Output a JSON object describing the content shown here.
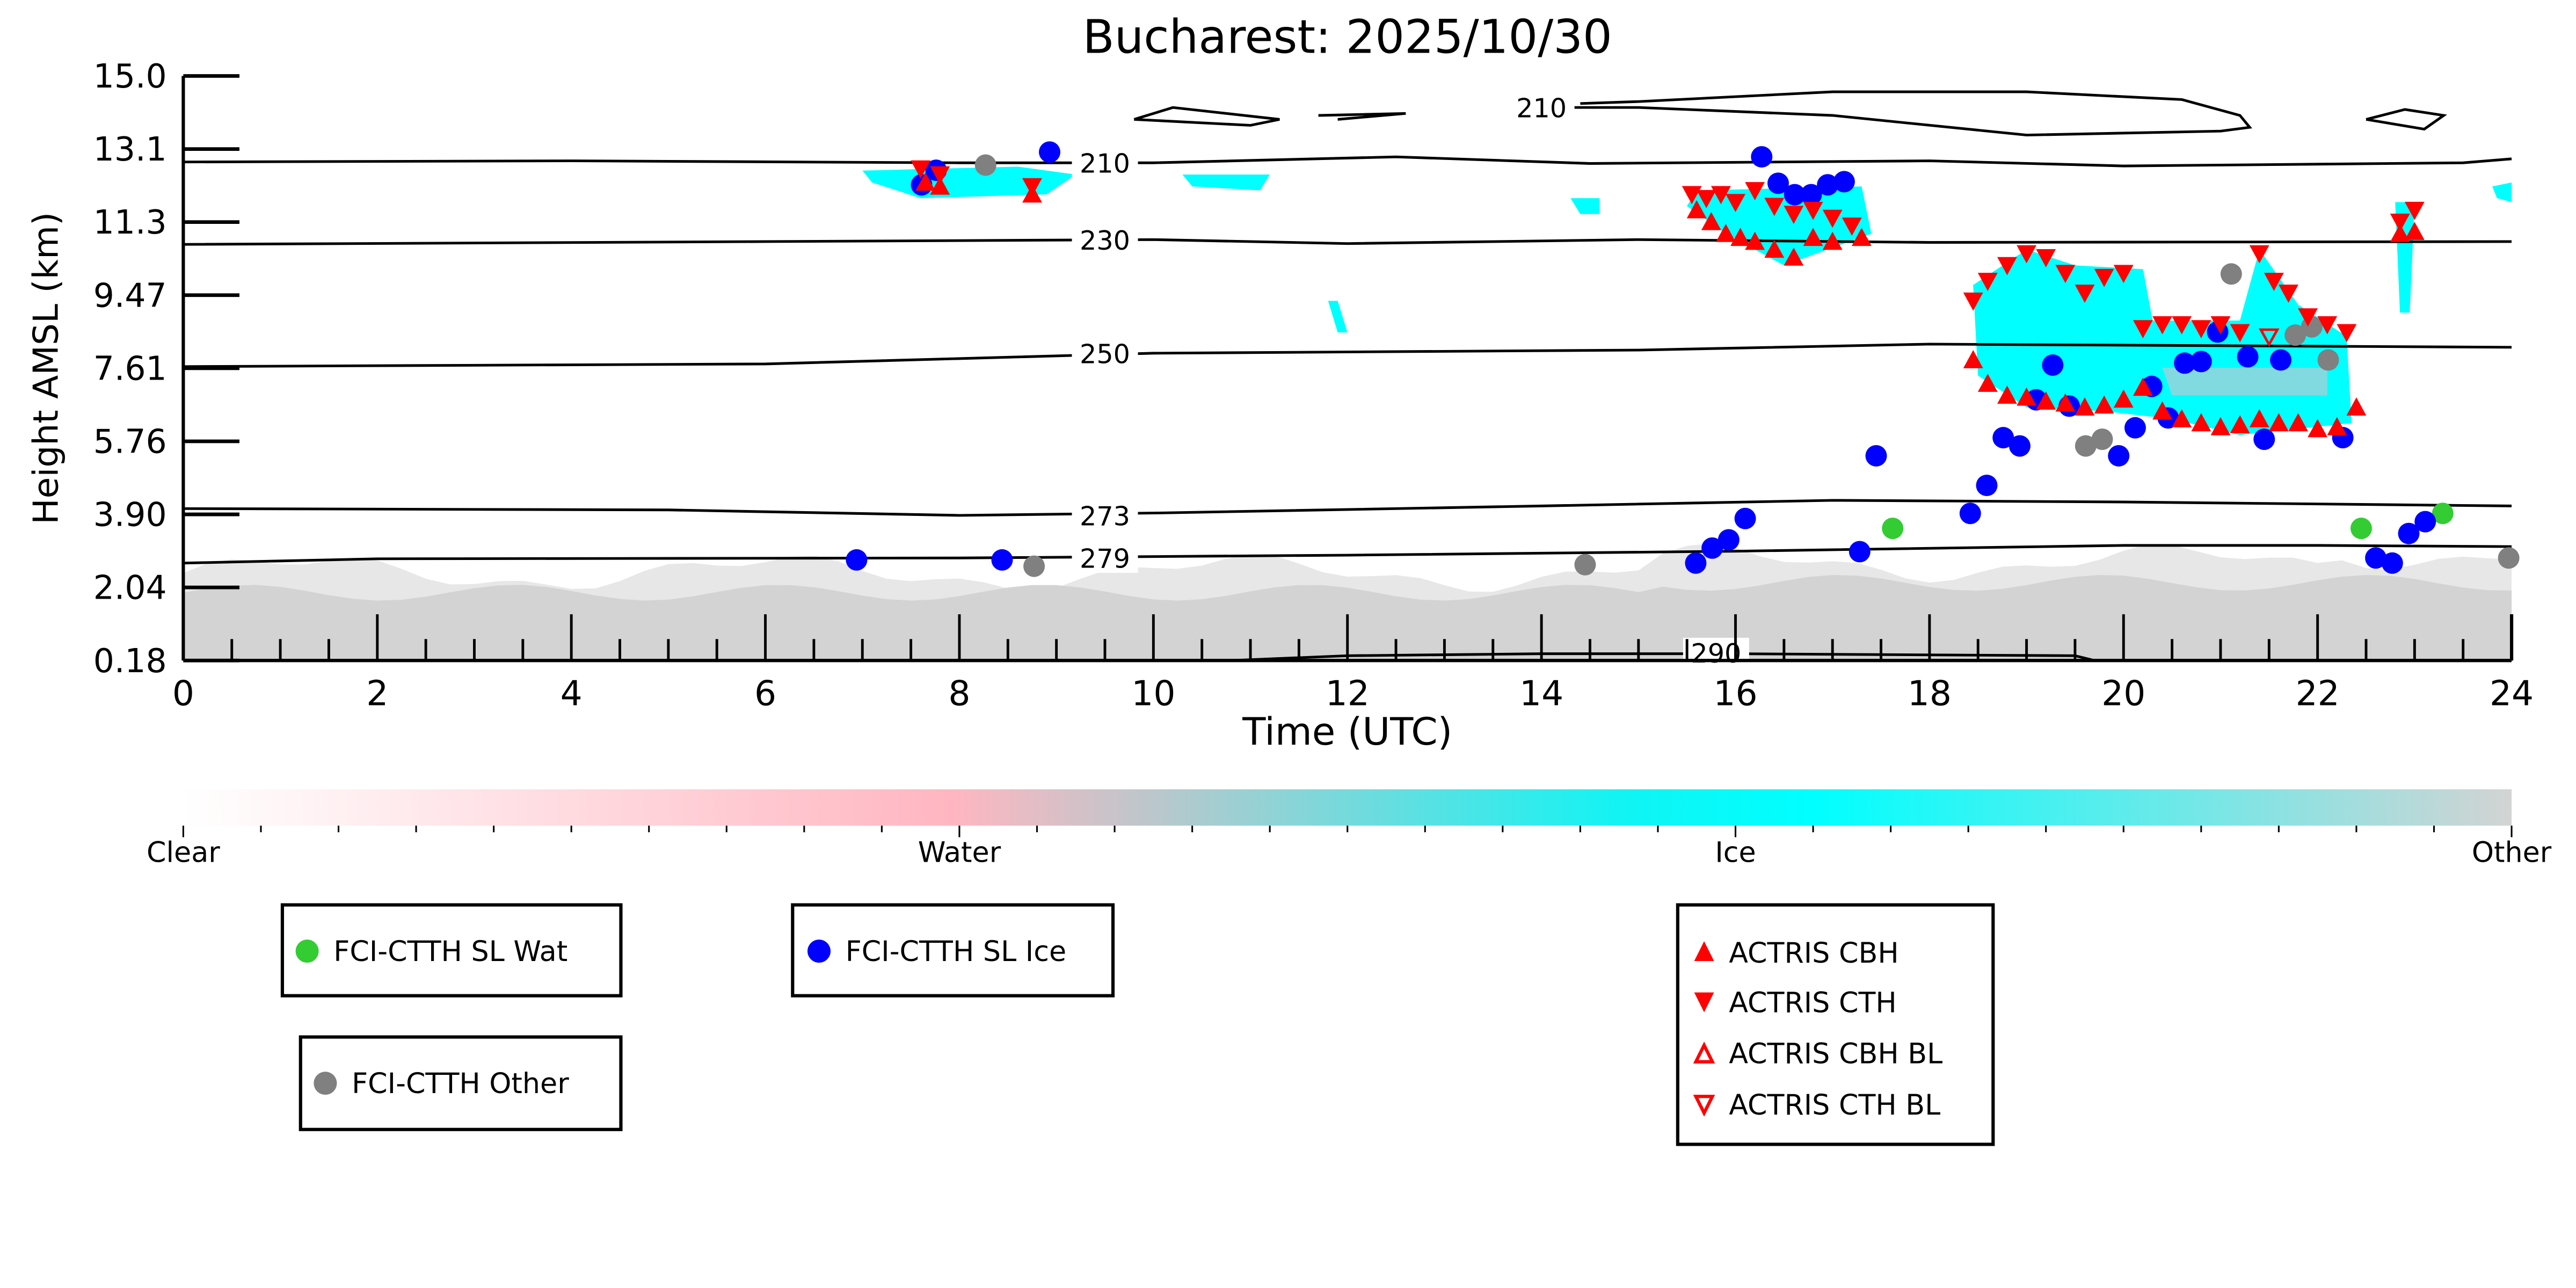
{
  "chart_data": {
    "type": "scatter",
    "title": "Bucharest: 2025/10/30",
    "xlabel": "Time (UTC)",
    "ylabel": "Height AMSL (km)",
    "xlim": [
      0,
      24
    ],
    "ylim": [
      0.18,
      15.0
    ],
    "xticks": [
      "0",
      "2",
      "4",
      "6",
      "8",
      "10",
      "12",
      "14",
      "16",
      "18",
      "20",
      "22",
      "24"
    ],
    "yticks": [
      "0.18",
      "2.04",
      "3.90",
      "5.76",
      "7.61",
      "9.47",
      "11.3",
      "13.1",
      "15.0"
    ],
    "colors": {
      "water": "#ffb6c1",
      "ice": "#00ffff",
      "other": "#d3d3d3",
      "wat": "#33cc33",
      "ice_pt": "#0000ff",
      "other_pt": "#808080",
      "actris": "#ff0000"
    },
    "colorbar": {
      "labels": [
        "Clear",
        "Water",
        "Ice",
        "Other"
      ]
    },
    "contours": [
      {
        "label": "210",
        "label_at": [
          9.5,
          12.8
        ],
        "points": [
          [
            0,
            12.82
          ],
          [
            4,
            12.85
          ],
          [
            8,
            12.8
          ],
          [
            10,
            12.8
          ],
          [
            12.5,
            12.95
          ],
          [
            14.5,
            12.78
          ],
          [
            18,
            12.85
          ],
          [
            20,
            12.72
          ],
          [
            23.5,
            12.8
          ],
          [
            24,
            12.9
          ]
        ]
      },
      {
        "label": "230",
        "label_at": [
          9.5,
          10.85
        ],
        "points": [
          [
            0,
            10.73
          ],
          [
            6,
            10.8
          ],
          [
            10,
            10.85
          ],
          [
            12,
            10.75
          ],
          [
            15,
            10.85
          ],
          [
            18,
            10.78
          ],
          [
            24,
            10.8
          ]
        ]
      },
      {
        "label": "250",
        "label_at": [
          9.5,
          7.97
        ],
        "points": [
          [
            0,
            7.63
          ],
          [
            6,
            7.7
          ],
          [
            10,
            7.97
          ],
          [
            15,
            8.05
          ],
          [
            18,
            8.2
          ],
          [
            24,
            8.12
          ]
        ]
      },
      {
        "label": "273",
        "label_at": [
          9.5,
          3.86
        ],
        "points": [
          [
            0,
            4.03
          ],
          [
            5,
            4.0
          ],
          [
            8,
            3.86
          ],
          [
            10,
            3.92
          ],
          [
            14,
            4.1
          ],
          [
            17,
            4.24
          ],
          [
            20,
            4.2
          ],
          [
            24,
            4.1
          ]
        ]
      },
      {
        "label": "279",
        "label_at": [
          9.5,
          2.78
        ],
        "points": [
          [
            0,
            2.65
          ],
          [
            2,
            2.76
          ],
          [
            8,
            2.78
          ],
          [
            12,
            2.85
          ],
          [
            16,
            2.95
          ],
          [
            20,
            3.1
          ],
          [
            22,
            3.1
          ],
          [
            24,
            3.07
          ]
        ]
      },
      {
        "label": "290",
        "label_at": [
          15.8,
          0.38
        ],
        "points": [
          [
            10.8,
            0.18
          ],
          [
            12,
            0.3
          ],
          [
            14,
            0.35
          ],
          [
            16,
            0.35
          ],
          [
            19.5,
            0.3
          ],
          [
            19.7,
            0.18
          ]
        ]
      },
      {
        "label": "210",
        "label_at": [
          14.0,
          14.2
        ],
        "points": [
          [
            14.2,
            14.2
          ],
          [
            15,
            14.2
          ],
          [
            17,
            14.0
          ],
          [
            19,
            13.5
          ],
          [
            21,
            13.6
          ],
          [
            21.3,
            13.7
          ],
          [
            21.2,
            14.0
          ],
          [
            20.6,
            14.4
          ],
          [
            19,
            14.6
          ],
          [
            17,
            14.6
          ],
          [
            15,
            14.35
          ],
          [
            14.4,
            14.3
          ]
        ]
      },
      {
        "label": "",
        "label_at": null,
        "points": [
          [
            9.8,
            13.9
          ],
          [
            11.0,
            13.75
          ],
          [
            11.3,
            13.9
          ],
          [
            10.2,
            14.2
          ],
          [
            9.8,
            13.9
          ]
        ]
      },
      {
        "label": "",
        "label_at": null,
        "points": [
          [
            11.7,
            14.0
          ],
          [
            12.6,
            14.05
          ],
          [
            11.9,
            13.9
          ]
        ]
      },
      {
        "label": "",
        "label_at": null,
        "points": [
          [
            22.5,
            13.9
          ],
          [
            23.1,
            13.65
          ],
          [
            23.3,
            14.0
          ],
          [
            22.9,
            14.15
          ],
          [
            22.5,
            13.9
          ]
        ]
      }
    ],
    "series": [
      {
        "name": "FCI-CTTH SL Wat",
        "marker": "circle",
        "points": [
          [
            17.62,
            3.53
          ],
          [
            22.45,
            3.53
          ],
          [
            23.29,
            3.91
          ]
        ]
      },
      {
        "name": "FCI-CTTH SL Ice",
        "marker": "circle",
        "points": [
          [
            7.61,
            12.24
          ],
          [
            7.76,
            12.61
          ],
          [
            8.93,
            13.07
          ],
          [
            6.94,
            2.73
          ],
          [
            8.44,
            2.73
          ],
          [
            16.27,
            12.95
          ],
          [
            16.44,
            12.28
          ],
          [
            16.61,
            11.99
          ],
          [
            16.78,
            11.99
          ],
          [
            16.95,
            12.24
          ],
          [
            17.12,
            12.32
          ],
          [
            17.45,
            5.37
          ],
          [
            19.27,
            7.67
          ],
          [
            19.1,
            6.79
          ],
          [
            19.44,
            6.63
          ],
          [
            18.76,
            5.83
          ],
          [
            18.93,
            5.62
          ],
          [
            19.95,
            5.37
          ],
          [
            20.12,
            6.08
          ],
          [
            20.29,
            7.13
          ],
          [
            20.46,
            6.33
          ],
          [
            20.63,
            7.72
          ],
          [
            20.8,
            7.76
          ],
          [
            20.97,
            8.51
          ],
          [
            21.28,
            7.88
          ],
          [
            21.62,
            7.8
          ],
          [
            21.45,
            5.79
          ],
          [
            22.26,
            5.83
          ],
          [
            18.59,
            4.62
          ],
          [
            18.42,
            3.91
          ],
          [
            16.1,
            3.78
          ],
          [
            15.93,
            3.24
          ],
          [
            15.76,
            3.03
          ],
          [
            15.59,
            2.65
          ],
          [
            17.28,
            2.94
          ],
          [
            22.6,
            2.78
          ],
          [
            22.77,
            2.65
          ],
          [
            22.94,
            3.4
          ],
          [
            23.11,
            3.7
          ]
        ]
      },
      {
        "name": "FCI-CTTH Other",
        "marker": "circle",
        "points": [
          [
            8.27,
            12.74
          ],
          [
            8.77,
            2.57
          ],
          [
            14.45,
            2.61
          ],
          [
            19.61,
            5.62
          ],
          [
            19.78,
            5.79
          ],
          [
            21.11,
            9.98
          ],
          [
            21.77,
            8.43
          ],
          [
            21.94,
            8.64
          ],
          [
            22.11,
            7.8
          ],
          [
            23.97,
            2.78
          ]
        ]
      },
      {
        "name": "ACTRIS CBH",
        "marker": "triangle-up",
        "points": [
          [
            7.65,
            12.3
          ],
          [
            7.8,
            12.2
          ],
          [
            8.75,
            12.0
          ],
          [
            15.6,
            11.6
          ],
          [
            15.75,
            11.3
          ],
          [
            15.9,
            11.0
          ],
          [
            16.05,
            10.9
          ],
          [
            16.2,
            10.8
          ],
          [
            16.4,
            10.6
          ],
          [
            16.6,
            10.4
          ],
          [
            16.8,
            10.9
          ],
          [
            17.0,
            10.8
          ],
          [
            17.3,
            10.9
          ],
          [
            18.45,
            7.8
          ],
          [
            18.6,
            7.2
          ],
          [
            18.8,
            6.9
          ],
          [
            19.0,
            6.85
          ],
          [
            19.2,
            6.75
          ],
          [
            19.4,
            6.7
          ],
          [
            19.6,
            6.6
          ],
          [
            19.8,
            6.65
          ],
          [
            20.0,
            6.8
          ],
          [
            20.2,
            7.1
          ],
          [
            20.4,
            6.5
          ],
          [
            20.6,
            6.3
          ],
          [
            20.8,
            6.2
          ],
          [
            21.0,
            6.1
          ],
          [
            21.2,
            6.15
          ],
          [
            21.4,
            6.3
          ],
          [
            21.6,
            6.2
          ],
          [
            21.8,
            6.2
          ],
          [
            22.0,
            6.05
          ],
          [
            22.2,
            6.1
          ],
          [
            22.4,
            6.6
          ],
          [
            22.85,
            11.0
          ],
          [
            23.0,
            11.05
          ]
        ]
      },
      {
        "name": "ACTRIS CTH",
        "marker": "triangle-down",
        "points": [
          [
            7.6,
            12.65
          ],
          [
            7.8,
            12.5
          ],
          [
            8.75,
            12.2
          ],
          [
            15.55,
            12.0
          ],
          [
            15.7,
            11.9
          ],
          [
            15.85,
            12.0
          ],
          [
            16.0,
            11.8
          ],
          [
            16.2,
            12.1
          ],
          [
            16.4,
            11.7
          ],
          [
            16.6,
            11.5
          ],
          [
            16.8,
            11.6
          ],
          [
            17.0,
            11.4
          ],
          [
            17.2,
            11.2
          ],
          [
            18.45,
            9.3
          ],
          [
            18.6,
            9.8
          ],
          [
            18.8,
            10.2
          ],
          [
            19.0,
            10.5
          ],
          [
            19.2,
            10.4
          ],
          [
            19.4,
            10.0
          ],
          [
            19.6,
            9.5
          ],
          [
            19.8,
            9.9
          ],
          [
            20.0,
            10.0
          ],
          [
            20.2,
            8.6
          ],
          [
            20.4,
            8.7
          ],
          [
            20.6,
            8.7
          ],
          [
            20.8,
            8.6
          ],
          [
            21.0,
            8.7
          ],
          [
            21.2,
            8.5
          ],
          [
            21.4,
            10.5
          ],
          [
            21.55,
            9.8
          ],
          [
            21.7,
            9.5
          ],
          [
            21.9,
            8.9
          ],
          [
            22.1,
            8.7
          ],
          [
            22.3,
            8.5
          ],
          [
            22.85,
            11.3
          ],
          [
            23.0,
            11.6
          ]
        ]
      },
      {
        "name": "ACTRIS CBH BL",
        "marker": "triangle-up-open",
        "points": []
      },
      {
        "name": "ACTRIS CTH BL",
        "marker": "triangle-down-open",
        "points": [
          [
            21.5,
            8.4
          ]
        ]
      }
    ],
    "legends": [
      {
        "entries": [
          "FCI-CTTH SL Wat"
        ]
      },
      {
        "entries": [
          "FCI-CTTH SL Ice"
        ]
      },
      {
        "entries": [
          "FCI-CTTH Other"
        ]
      },
      {
        "entries": [
          "ACTRIS CBH",
          "ACTRIS CTH",
          "ACTRIS CBH BL",
          "ACTRIS CTH BL"
        ]
      }
    ]
  }
}
